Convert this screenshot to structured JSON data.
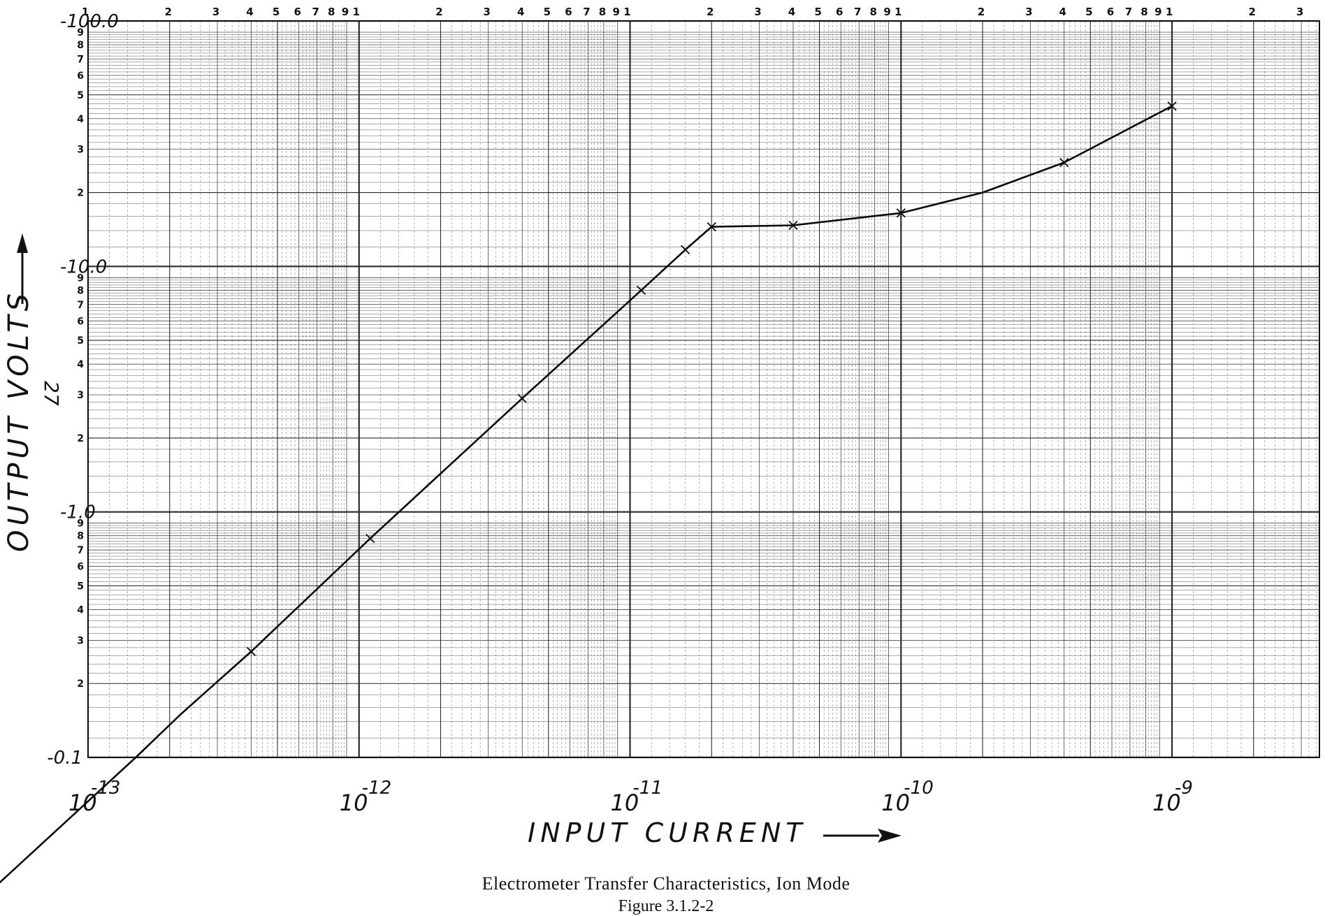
{
  "chart_data": {
    "type": "line",
    "xscale": "log",
    "yscale": "log",
    "xlim": [
      1e-13,
      3.5e-09
    ],
    "ylim": [
      0.1,
      100
    ],
    "xlabel": "INPUT CURRENT",
    "ylabel": "OUTPUT VOLTS",
    "x_tick_labels": [
      {
        "base": "10",
        "exp": "-13",
        "value": 1e-13
      },
      {
        "base": "10",
        "exp": "-12",
        "value": 1e-12
      },
      {
        "base": "10",
        "exp": "-11",
        "value": 1e-11
      },
      {
        "base": "10",
        "exp": "-10",
        "value": 1e-10
      },
      {
        "base": "10",
        "exp": "-9",
        "value": 1e-09
      }
    ],
    "y_decade_labels": [
      {
        "label": "-100.0",
        "value": 100
      },
      {
        "label": "-10.0",
        "value": 10
      },
      {
        "label": "-1.0",
        "value": 1
      },
      {
        "label": "-0.1",
        "value": 0.1
      }
    ],
    "top_minor_labels": [
      "1",
      "2",
      "3",
      "4",
      "5",
      "6",
      "7",
      "8",
      "9"
    ],
    "left_minor_labels": [
      "9",
      "8",
      "7",
      "6",
      "5",
      "4",
      "3",
      "2"
    ],
    "series": [
      {
        "x": [
          3e-14,
          1.5e-13,
          2.2e-13,
          4e-13,
          1.1e-12,
          4e-12,
          1.1e-11,
          1.6e-11,
          2e-11,
          4e-11,
          1e-10,
          2e-10,
          4e-10,
          1e-09
        ],
        "y": [
          0.0195,
          0.1,
          0.15,
          0.27,
          0.78,
          2.9,
          8.0,
          11.7,
          14.5,
          14.7,
          16.5,
          20.0,
          26.5,
          45.0
        ]
      }
    ],
    "markers": {
      "x": [
        4e-13,
        1.1e-12,
        4e-12,
        1.1e-11,
        1.6e-11,
        2e-11,
        4e-11,
        1e-10,
        4e-10,
        1e-09
      ],
      "y": [
        0.27,
        0.78,
        2.9,
        8.0,
        11.7,
        14.5,
        14.7,
        16.5,
        26.5,
        45.0
      ]
    },
    "grid": true
  },
  "annotations": {
    "side_note": "27",
    "caption": "Electrometer Transfer Characteristics, Ion Mode",
    "figure_number": "Figure 3.1.2-2"
  }
}
